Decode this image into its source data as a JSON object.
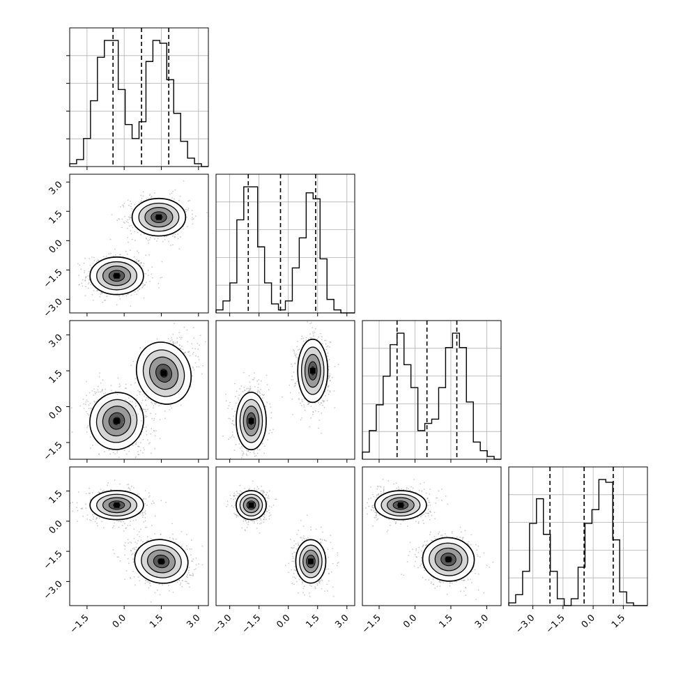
{
  "chart_data": {
    "type": "corner",
    "dimensions": 4,
    "panel_ticks": [
      [
        "-1.5",
        "0.0",
        "1.5",
        "3.0"
      ],
      [
        "-3.0",
        "-1.5",
        "0.0",
        "1.5",
        "3.0"
      ],
      [
        "-1.5",
        "0.0",
        "1.5",
        "3.0"
      ],
      [
        "-3.0",
        "-1.5",
        "0.0",
        "1.5"
      ]
    ],
    "y_ticks": [
      null,
      [
        "-3.0",
        "-1.5",
        "0.0",
        "1.5",
        "3.0"
      ],
      [
        "-1.5",
        "0.0",
        "1.5",
        "3.0"
      ],
      [
        "-3.0",
        "-1.5",
        "0.0",
        "1.5"
      ]
    ],
    "ranges": [
      [
        -2.2,
        3.4
      ],
      [
        -3.7,
        3.4
      ],
      [
        -2.2,
        3.6
      ],
      [
        -4.2,
        2.7
      ]
    ],
    "quantiles": [
      [
        -0.45,
        0.7,
        1.8
      ],
      [
        -2.05,
        -0.4,
        1.4
      ],
      [
        -0.75,
        0.5,
        1.75
      ],
      [
        -2.15,
        -0.45,
        1.0
      ]
    ],
    "histograms": [
      {
        "bins": 20,
        "counts": [
          2,
          5,
          20,
          47,
          78,
          90,
          90,
          55,
          30,
          20,
          32,
          75,
          90,
          88,
          62,
          38,
          18,
          6,
          2,
          0
        ]
      },
      {
        "bins": 20,
        "counts": [
          2,
          8,
          20,
          62,
          84,
          84,
          44,
          20,
          6,
          2,
          8,
          30,
          50,
          80,
          76,
          36,
          9,
          2,
          0,
          0
        ]
      },
      {
        "bins": 20,
        "counts": [
          5,
          20,
          38,
          58,
          80,
          88,
          66,
          50,
          20,
          25,
          28,
          50,
          78,
          88,
          78,
          40,
          12,
          6,
          2,
          0
        ]
      },
      {
        "bins": 20,
        "counts": [
          2,
          8,
          25,
          60,
          78,
          52,
          25,
          5,
          0,
          5,
          28,
          60,
          70,
          92,
          90,
          48,
          10,
          2,
          0,
          0
        ]
      }
    ],
    "scatter_clusters": [
      {
        "row": 1,
        "col": 0,
        "clusters": [
          {
            "cx": -0.3,
            "cy": -1.8,
            "sx": 0.45,
            "sy": 0.4,
            "rho": 0.0
          },
          {
            "cx": 1.4,
            "cy": 1.2,
            "sx": 0.45,
            "sy": 0.4,
            "rho": 0.0
          }
        ]
      },
      {
        "row": 2,
        "col": 0,
        "clusters": [
          {
            "cx": -0.3,
            "cy": -0.6,
            "sx": 0.45,
            "sy": 0.5,
            "rho": -0.35
          },
          {
            "cx": 1.6,
            "cy": 1.4,
            "sx": 0.45,
            "sy": 0.55,
            "rho": 0.45
          }
        ]
      },
      {
        "row": 2,
        "col": 1,
        "clusters": [
          {
            "cx": -1.9,
            "cy": -0.6,
            "sx": 0.32,
            "sy": 0.5,
            "rho": 0.0
          },
          {
            "cx": 1.25,
            "cy": 1.5,
            "sx": 0.32,
            "sy": 0.55,
            "rho": 0.0
          }
        ]
      },
      {
        "row": 3,
        "col": 0,
        "clusters": [
          {
            "cx": -0.3,
            "cy": 0.8,
            "sx": 0.45,
            "sy": 0.3,
            "rho": 0.0
          },
          {
            "cx": 1.5,
            "cy": -2.0,
            "sx": 0.45,
            "sy": 0.45,
            "rho": -0.2
          }
        ]
      },
      {
        "row": 3,
        "col": 1,
        "clusters": [
          {
            "cx": -1.9,
            "cy": 0.8,
            "sx": 0.32,
            "sy": 0.3,
            "rho": 0.0
          },
          {
            "cx": 1.15,
            "cy": -2.0,
            "sx": 0.32,
            "sy": 0.45,
            "rho": 0.0
          }
        ]
      },
      {
        "row": 3,
        "col": 2,
        "clusters": [
          {
            "cx": -0.6,
            "cy": 0.8,
            "sx": 0.45,
            "sy": 0.3,
            "rho": 0.0
          },
          {
            "cx": 1.4,
            "cy": -1.9,
            "sx": 0.45,
            "sy": 0.45,
            "rho": -0.1
          }
        ]
      }
    ],
    "grid": true,
    "colors": {
      "hist": "#000000",
      "points": "#9a9a9a",
      "contour_line": "#000000",
      "grid": "#b0b0b0"
    }
  }
}
